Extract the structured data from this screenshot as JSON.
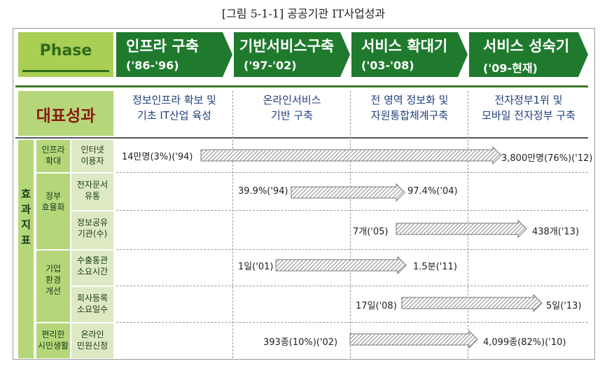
{
  "caption": "[그림 5-1-1] 공공기관 IT사업성과",
  "phase_label": "Phase",
  "periods": [
    {
      "title": "인프라 구축",
      "years": "('86-'96)",
      "color": "#1f7a2e"
    },
    {
      "title": "기반서비스구축",
      "years": "('97-'02)",
      "color": "#1f7a2e"
    },
    {
      "title": "서비스 확대기",
      "years": "('03-'08)",
      "color": "#1f7a2e"
    },
    {
      "title": "서비스 성숙기",
      "years": "('09-현재)",
      "color": "#1f7a2e"
    }
  ],
  "rep_label": "대표성과",
  "achievements": [
    {
      "line1": "정보인프라 확보 및",
      "line2": "기초 IT산업 육성"
    },
    {
      "line1": "온라인서비스",
      "line2": "기반 구축"
    },
    {
      "line1": "전 영역 정보화 및",
      "line2": "자원통합체계구축"
    },
    {
      "line1": "전자정부1위 및",
      "line2": "모바일 전자정부 구축"
    }
  ],
  "indicator_label": "효과지표",
  "categories": [
    {
      "line1": "인프라",
      "line2": "확대"
    },
    {
      "line1": "정부",
      "line2": "효율화"
    },
    {
      "line1": "기업",
      "line2": "환경",
      "line3": "개선"
    },
    {
      "line1": "편리한",
      "line2": "시민생활"
    }
  ],
  "rows": [
    {
      "sub1": "인터넷",
      "sub2": "이용자",
      "start_label": "14만명(3%)('94)",
      "end_label": "3,800만명(76%)('12)"
    },
    {
      "sub1": "전자문서",
      "sub2": "유통",
      "start_label": "39.9%('94)",
      "end_label": "97.4%('04)"
    },
    {
      "sub1": "정보공유",
      "sub2": "기관(수)",
      "start_label": "7개('05)",
      "end_label": "438개('13)"
    },
    {
      "sub1": "수출통관",
      "sub2": "소요시간",
      "start_label": "1일('01)",
      "end_label": "1.5분('11)"
    },
    {
      "sub1": "회사등록",
      "sub2": "소요일수",
      "start_label": "17일('08)",
      "end_label": "5일('13)"
    },
    {
      "sub1": "온라인",
      "sub2": "민원신청",
      "start_label": "393종(10%)('02)",
      "end_label": "4,099종(82%)('10)"
    }
  ],
  "colors": {
    "dark_green": "#1f7a2e",
    "light_green": "#b5d77a",
    "title_red": "#8b1a12",
    "achievement_blue": "#1f3f7a"
  }
}
